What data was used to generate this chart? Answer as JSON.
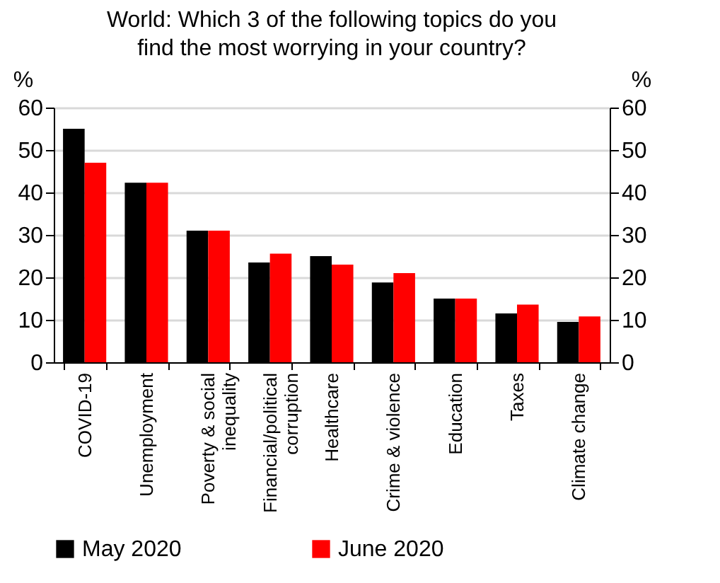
{
  "chart_data": {
    "type": "bar",
    "title": "World: Which 3 of the following topics do you find the most worrying in your country?",
    "ylabel": "%",
    "y2label": "%",
    "categories": [
      "COVID-19",
      "Unemployment",
      "Poverty & social inequality",
      "Financial/political corruption",
      "Healthcare",
      "Crime & violence",
      "Education",
      "Taxes",
      "Climate change"
    ],
    "series": [
      {
        "name": "May 2020",
        "color": "#000000",
        "values": [
          55,
          42.3,
          31,
          23.5,
          25,
          18.8,
          15,
          11.5,
          9.5
        ]
      },
      {
        "name": "June 2020",
        "color": "#ff0000",
        "values": [
          47,
          42.3,
          31,
          25.6,
          23,
          21,
          15,
          13.6,
          10.8
        ]
      }
    ],
    "ylim": [
      0,
      60
    ],
    "yticks": [
      0,
      10,
      20,
      30,
      40,
      50,
      60
    ],
    "y2lim": [
      0,
      60
    ],
    "y2ticks": [
      0,
      10,
      20,
      30,
      40,
      50,
      60
    ],
    "grid": "y",
    "legend": "bottom"
  }
}
